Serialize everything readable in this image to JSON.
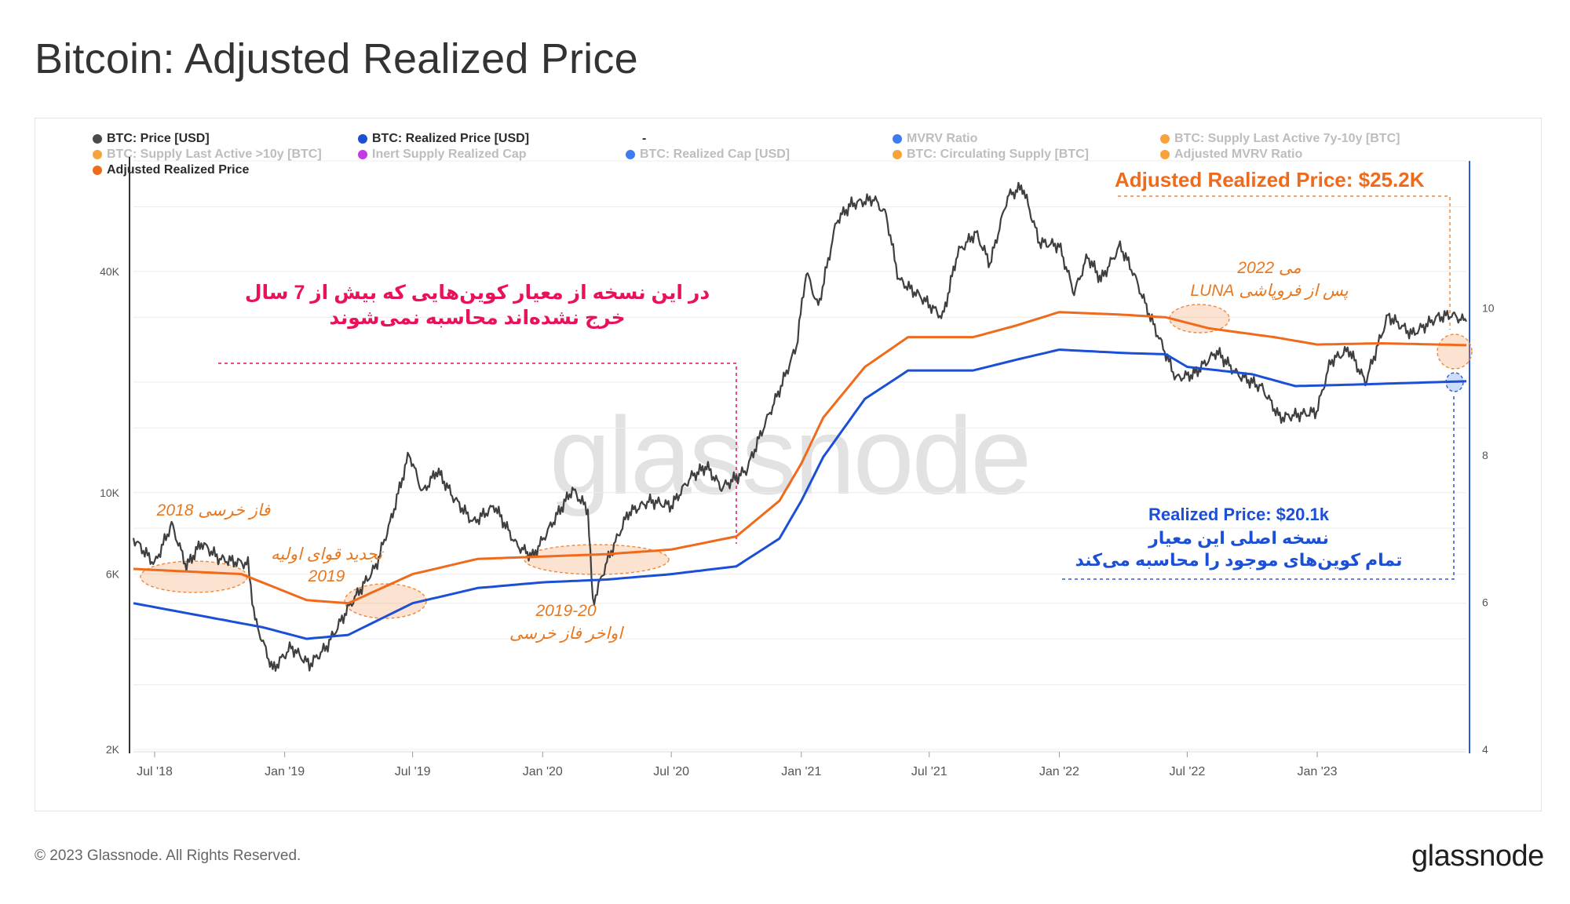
{
  "title": "Bitcoin: Adjusted Realized Price",
  "legend": [
    {
      "label": "BTC: Price [USD]",
      "color": "#4a4a4a",
      "active": true
    },
    {
      "label": "BTC: Realized Price [USD]",
      "color": "#1a4fd6",
      "active": true
    },
    {
      "label": "-",
      "color": "",
      "active": true
    },
    {
      "label": "MVRV Ratio",
      "color": "#3d7bf0",
      "active": false
    },
    {
      "label": "BTC: Supply Last Active 7y-10y [BTC]",
      "color": "#f7a23b",
      "active": false
    },
    {
      "label": "BTC: Supply Last Active >10y [BTC]",
      "color": "#f7a23b",
      "active": false
    },
    {
      "label": "Inert Supply Realized Cap",
      "color": "#c43ae6",
      "active": false
    },
    {
      "label": "BTC: Realized Cap [USD]",
      "color": "#3d7bf0",
      "active": false
    },
    {
      "label": "BTC: Circulating Supply [BTC]",
      "color": "#f7a23b",
      "active": false
    },
    {
      "label": "Adjusted MVRV Ratio",
      "color": "#f7a23b",
      "active": false
    },
    {
      "label": "Adjusted Realized Price",
      "color": "#f06a1b",
      "active": true
    }
  ],
  "watermark": "glassnode",
  "annotations": {
    "adjusted_price_label": "Adjusted Realized Price: $25.2K",
    "realized_price_label": "Realized Price: $20.1k",
    "realized_note_1": "نسخه اصلی این معیار",
    "realized_note_2": "تمام کوین‌های موجود را محاسبه می‌کند",
    "main_note_1": "در این نسخه از  معیار کوین‌هایی که بیش از 7 سال",
    "main_note_2": "خرج نشده‌اند محاسبه نمی‌شوند",
    "bear_2018": "فاز خرسی 2018",
    "reacc_2019_a": "تجدید قوای اولیه",
    "reacc_2019_b": "2019",
    "late_bear_a": "2019-20",
    "late_bear_b": "اواخر فاز خرسی",
    "luna_a": "می 2022",
    "luna_b": "پس از فروپاشی LUNA"
  },
  "colors": {
    "price": "#3f3f3f",
    "realized": "#1a4fd6",
    "adjusted": "#f06a1b",
    "pink": "#e8125c",
    "orange_text": "#e8781f",
    "right_axis": "#2a5bd7"
  },
  "chart_data": {
    "type": "line",
    "title": "Bitcoin: Adjusted Realized Price",
    "x_ticks": [
      "Jul '18",
      "Jan '19",
      "Jul '19",
      "Jan '20",
      "Jul '20",
      "Jan '21",
      "Jul '21",
      "Jan '22",
      "Jul '22",
      "Jan '23"
    ],
    "y_left": {
      "scale": "log",
      "ticks": [
        "2K",
        "6K",
        "10K",
        "40K"
      ],
      "range": [
        2000,
        80000
      ]
    },
    "y_right": {
      "scale": "linear",
      "ticks": [
        "4",
        "6",
        "8",
        "10"
      ],
      "range": [
        4,
        12
      ]
    },
    "series": [
      {
        "name": "BTC: Price [USD]",
        "points": [
          [
            "2018-06-01",
            7500
          ],
          [
            "2018-07-01",
            6400
          ],
          [
            "2018-07-25",
            8200
          ],
          [
            "2018-08-15",
            6300
          ],
          [
            "2018-09-05",
            7300
          ],
          [
            "2018-10-01",
            6600
          ],
          [
            "2018-11-10",
            6400
          ],
          [
            "2018-11-20",
            4500
          ],
          [
            "2018-12-15",
            3300
          ],
          [
            "2019-01-10",
            3800
          ],
          [
            "2019-02-05",
            3400
          ],
          [
            "2019-03-01",
            3800
          ],
          [
            "2019-04-02",
            4900
          ],
          [
            "2019-05-10",
            6300
          ],
          [
            "2019-06-01",
            8500
          ],
          [
            "2019-06-26",
            12800
          ],
          [
            "2019-07-15",
            10000
          ],
          [
            "2019-08-05",
            11500
          ],
          [
            "2019-08-28",
            9700
          ],
          [
            "2019-09-25",
            8300
          ],
          [
            "2019-10-25",
            9200
          ],
          [
            "2019-11-25",
            7200
          ],
          [
            "2019-12-18",
            6700
          ],
          [
            "2020-01-20",
            8600
          ],
          [
            "2020-02-12",
            10200
          ],
          [
            "2020-03-05",
            9000
          ],
          [
            "2020-03-12",
            5000
          ],
          [
            "2020-04-01",
            6500
          ],
          [
            "2020-05-01",
            8800
          ],
          [
            "2020-06-01",
            9500
          ],
          [
            "2020-07-01",
            9200
          ],
          [
            "2020-07-28",
            11000
          ],
          [
            "2020-08-20",
            11800
          ],
          [
            "2020-09-10",
            10300
          ],
          [
            "2020-10-15",
            11500
          ],
          [
            "2020-11-10",
            15300
          ],
          [
            "2020-12-01",
            19000
          ],
          [
            "2020-12-25",
            25000
          ],
          [
            "2021-01-08",
            40000
          ],
          [
            "2021-01-25",
            32000
          ],
          [
            "2021-02-20",
            55000
          ],
          [
            "2021-03-13",
            61000
          ],
          [
            "2021-04-14",
            63000
          ],
          [
            "2021-05-01",
            57000
          ],
          [
            "2021-05-19",
            38000
          ],
          [
            "2021-06-20",
            34000
          ],
          [
            "2021-07-20",
            30000
          ],
          [
            "2021-08-10",
            45000
          ],
          [
            "2021-09-05",
            51000
          ],
          [
            "2021-09-25",
            42000
          ],
          [
            "2021-10-20",
            64000
          ],
          [
            "2021-11-10",
            68000
          ],
          [
            "2021-12-04",
            48000
          ],
          [
            "2022-01-01",
            47000
          ],
          [
            "2022-01-22",
            35000
          ],
          [
            "2022-02-10",
            44000
          ],
          [
            "2022-03-01",
            38000
          ],
          [
            "2022-03-28",
            47000
          ],
          [
            "2022-04-15",
            40000
          ],
          [
            "2022-05-10",
            30000
          ],
          [
            "2022-06-15",
            20500
          ],
          [
            "2022-07-10",
            21000
          ],
          [
            "2022-08-12",
            24200
          ],
          [
            "2022-09-10",
            21000
          ],
          [
            "2022-10-15",
            19300
          ],
          [
            "2022-11-09",
            16000
          ],
          [
            "2022-12-31",
            16600
          ],
          [
            "2023-01-20",
            22800
          ],
          [
            "2023-02-15",
            24500
          ],
          [
            "2023-03-10",
            20000
          ],
          [
            "2023-04-11",
            30300
          ],
          [
            "2023-05-15",
            27000
          ],
          [
            "2023-06-20",
            30000
          ],
          [
            "2023-07-10",
            30500
          ],
          [
            "2023-07-31",
            29200
          ]
        ]
      },
      {
        "name": "BTC: Realized Price [USD]",
        "points": [
          [
            "2018-06-01",
            5000
          ],
          [
            "2018-12-01",
            4300
          ],
          [
            "2019-02-01",
            4000
          ],
          [
            "2019-04-01",
            4100
          ],
          [
            "2019-07-01",
            5000
          ],
          [
            "2019-10-01",
            5500
          ],
          [
            "2020-01-01",
            5700
          ],
          [
            "2020-04-01",
            5800
          ],
          [
            "2020-07-01",
            6000
          ],
          [
            "2020-10-01",
            6300
          ],
          [
            "2020-12-01",
            7500
          ],
          [
            "2021-01-01",
            9500
          ],
          [
            "2021-02-01",
            12500
          ],
          [
            "2021-04-01",
            18000
          ],
          [
            "2021-06-01",
            21500
          ],
          [
            "2021-09-01",
            21500
          ],
          [
            "2021-11-01",
            23000
          ],
          [
            "2022-01-01",
            24500
          ],
          [
            "2022-04-01",
            24000
          ],
          [
            "2022-06-01",
            23800
          ],
          [
            "2022-07-01",
            22000
          ],
          [
            "2022-10-01",
            21000
          ],
          [
            "2022-12-01",
            19500
          ],
          [
            "2023-03-01",
            19700
          ],
          [
            "2023-07-31",
            20100
          ]
        ]
      },
      {
        "name": "Adjusted Realized Price",
        "points": [
          [
            "2018-06-01",
            6200
          ],
          [
            "2018-11-01",
            6000
          ],
          [
            "2019-02-01",
            5100
          ],
          [
            "2019-04-01",
            5000
          ],
          [
            "2019-07-01",
            6000
          ],
          [
            "2019-10-01",
            6600
          ],
          [
            "2020-01-01",
            6700
          ],
          [
            "2020-04-01",
            6800
          ],
          [
            "2020-07-01",
            7000
          ],
          [
            "2020-10-01",
            7600
          ],
          [
            "2020-12-01",
            9500
          ],
          [
            "2021-01-01",
            12000
          ],
          [
            "2021-02-01",
            16000
          ],
          [
            "2021-04-01",
            22000
          ],
          [
            "2021-06-01",
            26500
          ],
          [
            "2021-09-01",
            26500
          ],
          [
            "2021-11-01",
            28500
          ],
          [
            "2022-01-01",
            31000
          ],
          [
            "2022-04-01",
            30500
          ],
          [
            "2022-06-01",
            30000
          ],
          [
            "2022-08-01",
            28000
          ],
          [
            "2022-11-01",
            26500
          ],
          [
            "2023-01-01",
            25300
          ],
          [
            "2023-04-01",
            25500
          ],
          [
            "2023-07-31",
            25200
          ]
        ]
      }
    ]
  },
  "footer": {
    "copyright": "© 2023 Glassnode. All Rights Reserved.",
    "brand": "glassnode"
  }
}
